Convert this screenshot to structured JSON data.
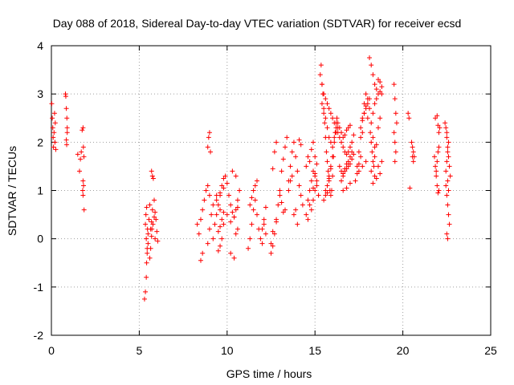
{
  "chart_data": {
    "type": "scatter",
    "title": "Day 088 of 2018, Sidereal Day-to-day VTEC variation (SDTVAR) for receiver ecsd",
    "xlabel": "GPS time / hours",
    "ylabel": "SDTVAR / TECUs",
    "xlim": [
      0,
      25
    ],
    "ylim": [
      -2,
      4
    ],
    "xticks": [
      0,
      5,
      10,
      15,
      20,
      25
    ],
    "yticks": [
      -2,
      -1,
      0,
      1,
      2,
      3,
      4
    ],
    "xtick_labels": [
      "0",
      "5",
      "10",
      "15",
      "20",
      "25"
    ],
    "ytick_labels": [
      "-2",
      "-1",
      "0",
      "1",
      "2",
      "3",
      "4"
    ],
    "grid": true,
    "marker": "+",
    "color": "#ff0000",
    "series": [
      {
        "name": "SDTVAR",
        "x": [
          0.02,
          0.05,
          0.08,
          0.1,
          0.12,
          0.15,
          0.18,
          0.2,
          0.22,
          0.25,
          0.8,
          0.82,
          0.85,
          0.88,
          0.9,
          0.85,
          0.87,
          0.9,
          1.5,
          1.6,
          1.65,
          1.7,
          1.75,
          1.8,
          1.82,
          1.85,
          1.78,
          1.8,
          1.83,
          1.86,
          1.8,
          5.3,
          5.35,
          5.4,
          5.42,
          5.45,
          5.5,
          5.55,
          5.6,
          5.35,
          5.4,
          5.45,
          5.5,
          5.38,
          5.42,
          5.47,
          5.7,
          5.75,
          5.8,
          5.85,
          5.9,
          5.95,
          6.0,
          6.05,
          5.72,
          5.78,
          5.85,
          5.9,
          5.6,
          5.65,
          5.7,
          5.65,
          5.7,
          5.75,
          8.3,
          8.4,
          8.5,
          8.6,
          8.7,
          8.8,
          8.9,
          9.0,
          9.1,
          8.9,
          8.95,
          9.0,
          9.05,
          8.5,
          8.6,
          8.9,
          9.0,
          9.2,
          9.3,
          9.4,
          9.5,
          9.6,
          9.7,
          9.8,
          9.9,
          10.0,
          10.1,
          10.2,
          10.3,
          10.4,
          10.5,
          10.6,
          10.7,
          9.5,
          9.6,
          9.7,
          9.8,
          9.5,
          9.6,
          9.7,
          10.2,
          10.4,
          10.5,
          10.6,
          9.2,
          9.4,
          9.6,
          9.8,
          10.0,
          10.2,
          10.4,
          10.6,
          9.4,
          9.6,
          9.8,
          10.3,
          10.5,
          11.2,
          11.3,
          11.4,
          11.5,
          11.6,
          11.7,
          11.8,
          11.9,
          12.0,
          12.1,
          12.2,
          11.5,
          11.6,
          11.7,
          11.3,
          11.4,
          12.0,
          12.1,
          12.2,
          12.5,
          12.6,
          12.7,
          12.8,
          12.9,
          13.0,
          13.1,
          13.2,
          13.3,
          13.4,
          12.6,
          12.7,
          12.8,
          13.0,
          13.1,
          13.2,
          13.3,
          12.5,
          12.6,
          12.8,
          13.5,
          13.6,
          13.7,
          13.8,
          13.9,
          14.0,
          14.1,
          14.2,
          14.3,
          13.8,
          13.9,
          14.0,
          13.5,
          13.6,
          13.7,
          14.1,
          14.2,
          14.5,
          14.6,
          14.7,
          14.8,
          14.9,
          15.0,
          15.1,
          15.2,
          14.5,
          14.6,
          14.7,
          14.8,
          14.9,
          15.0,
          15.1,
          15.2,
          14.6,
          14.7,
          14.9,
          15.0,
          15.1,
          14.8,
          14.9,
          15.0,
          15.3,
          15.35,
          15.4,
          15.45,
          15.5,
          15.55,
          15.6,
          15.65,
          15.7,
          15.75,
          15.8,
          15.85,
          15.9,
          15.95,
          16.0,
          16.05,
          16.1,
          16.15,
          16.2,
          16.25,
          15.4,
          15.5,
          15.6,
          15.7,
          15.8,
          15.9,
          16.0,
          16.1,
          16.2,
          16.3,
          15.5,
          15.6,
          15.7,
          15.8,
          15.9,
          16.0,
          15.4,
          15.5,
          15.6,
          15.7,
          15.8,
          15.9,
          16.0,
          16.1,
          16.2,
          15.6,
          15.7,
          15.8,
          15.9,
          16.3,
          16.4,
          16.5,
          16.6,
          16.7,
          16.8,
          16.9,
          17.0,
          17.1,
          17.2,
          16.4,
          16.5,
          16.6,
          16.7,
          16.8,
          16.9,
          17.0,
          17.1,
          16.3,
          16.4,
          16.5,
          16.6,
          16.7,
          16.8,
          16.9,
          17.0,
          16.5,
          16.6,
          16.7,
          16.8,
          16.9,
          17.0,
          17.1,
          17.2,
          16.6,
          16.8,
          17.0,
          17.3,
          17.4,
          17.5,
          17.6,
          17.7,
          17.8,
          17.9,
          18.0,
          18.1,
          17.4,
          17.5,
          17.6,
          17.7,
          17.8,
          17.9,
          18.0,
          17.6,
          17.7,
          17.8,
          17.9,
          18.0,
          18.1,
          17.5,
          17.7,
          17.9,
          18.1,
          18.2,
          18.3,
          18.4,
          18.5,
          18.6,
          18.7,
          18.8,
          18.15,
          18.2,
          18.25,
          18.3,
          18.35,
          18.4,
          18.2,
          18.3,
          18.4,
          18.5,
          18.6,
          18.7,
          18.8,
          18.3,
          18.4,
          18.5,
          18.6,
          18.7,
          18.2,
          18.4,
          18.6,
          18.8,
          18.3,
          18.5,
          18.7,
          19.5,
          19.55,
          19.6,
          19.65,
          19.5,
          19.55,
          19.6,
          19.55,
          20.3,
          20.35,
          20.4,
          20.5,
          20.55,
          20.6,
          20.65,
          20.6,
          20.55,
          21.8,
          21.85,
          21.9,
          21.95,
          22.0,
          22.05,
          21.9,
          21.95,
          22.0,
          22.05,
          21.85,
          21.95,
          22.1,
          22.05,
          22.0,
          22.4,
          22.45,
          22.5,
          22.55,
          22.6,
          22.65,
          22.7,
          22.45,
          22.5,
          22.55,
          22.6,
          22.65,
          22.5,
          22.55,
          22.6,
          22.45,
          22.5,
          22.55,
          22.6,
          22.5,
          22.55
        ],
        "y": [
          2.8,
          2.5,
          2.3,
          2.1,
          1.9,
          2.2,
          2.6,
          2.0,
          2.4,
          1.85,
          3.0,
          2.95,
          2.7,
          2.5,
          2.2,
          2.05,
          1.95,
          2.3,
          1.75,
          1.4,
          1.65,
          1.8,
          2.25,
          2.3,
          1.9,
          1.7,
          1.0,
          0.9,
          1.1,
          0.6,
          1.2,
          -1.25,
          -1.1,
          -0.8,
          -0.5,
          -0.2,
          0.1,
          0.4,
          0.7,
          0.3,
          0.0,
          -0.3,
          -0.1,
          0.5,
          0.65,
          0.2,
          1.4,
          1.3,
          1.25,
          0.8,
          0.55,
          0.4,
          0.15,
          -0.05,
          0.2,
          0.3,
          0.45,
          0.0,
          -0.4,
          -0.2,
          0.05,
          0.2,
          0.35,
          0.6,
          0.3,
          0.1,
          0.4,
          0.6,
          0.8,
          1.0,
          1.1,
          0.9,
          0.5,
          1.9,
          2.1,
          2.2,
          1.8,
          -0.45,
          -0.3,
          -0.1,
          0.2,
          0.0,
          0.3,
          0.5,
          0.7,
          0.9,
          1.1,
          1.25,
          1.3,
          1.15,
          0.9,
          0.7,
          0.55,
          0.45,
          0.6,
          0.8,
          1.0,
          0.15,
          0.25,
          0.4,
          0.55,
          -0.25,
          -0.15,
          0.0,
          -0.3,
          -0.4,
          0.1,
          0.2,
          0.7,
          0.8,
          0.6,
          0.3,
          0.5,
          0.35,
          0.45,
          0.65,
          0.9,
          0.95,
          1.05,
          1.4,
          1.3,
          -0.2,
          0.0,
          0.3,
          0.6,
          0.8,
          0.5,
          0.2,
          0.0,
          -0.1,
          0.4,
          0.65,
          1.0,
          1.1,
          1.2,
          0.7,
          0.85,
          0.2,
          0.3,
          0.1,
          -0.3,
          -0.15,
          0.1,
          0.4,
          0.7,
          1.0,
          1.4,
          1.65,
          1.9,
          2.1,
          1.45,
          1.8,
          2.0,
          0.9,
          0.75,
          0.55,
          0.6,
          -0.1,
          0.15,
          0.35,
          1.2,
          1.5,
          1.8,
          2.0,
          1.7,
          1.4,
          1.1,
          0.9,
          0.7,
          0.5,
          0.6,
          0.3,
          1.0,
          1.2,
          1.3,
          2.05,
          1.95,
          0.5,
          0.8,
          1.0,
          1.2,
          1.4,
          1.3,
          1.1,
          0.9,
          1.5,
          1.7,
          1.6,
          0.6,
          0.8,
          1.0,
          1.2,
          0.9,
          0.4,
          0.7,
          1.05,
          1.35,
          1.55,
          1.85,
          2.0,
          1.7,
          3.4,
          3.6,
          3.2,
          3.0,
          2.7,
          2.4,
          2.1,
          1.8,
          1.6,
          1.4,
          1.2,
          1.0,
          0.9,
          1.0,
          1.3,
          1.7,
          2.0,
          2.2,
          2.4,
          2.5,
          2.8,
          2.6,
          2.5,
          2.3,
          2.1,
          2.0,
          1.9,
          2.1,
          2.2,
          2.3,
          0.8,
          0.9,
          1.1,
          1.3,
          1.5,
          1.7,
          3.2,
          3.0,
          2.9,
          2.8,
          2.7,
          2.6,
          2.5,
          2.4,
          2.3,
          1.0,
          0.95,
          1.25,
          1.45,
          2.2,
          2.1,
          2.0,
          1.9,
          1.8,
          1.75,
          1.8,
          1.9,
          2.0,
          2.15,
          1.5,
          1.4,
          1.35,
          1.45,
          1.55,
          1.6,
          1.7,
          1.8,
          2.4,
          2.3,
          2.2,
          2.1,
          2.15,
          2.25,
          2.3,
          2.35,
          1.2,
          1.3,
          1.4,
          1.45,
          1.5,
          1.55,
          1.65,
          1.75,
          1.0,
          1.05,
          1.15,
          1.2,
          1.5,
          1.8,
          2.1,
          2.5,
          2.8,
          3.0,
          2.9,
          2.7,
          1.35,
          1.55,
          1.7,
          2.2,
          2.6,
          2.75,
          2.5,
          2.3,
          2.45,
          2.6,
          2.7,
          2.8,
          2.9,
          1.4,
          1.5,
          1.6,
          3.75,
          3.6,
          3.4,
          3.2,
          3.1,
          3.3,
          3.25,
          3.15,
          2.2,
          2.0,
          1.8,
          1.6,
          1.5,
          1.7,
          2.4,
          2.6,
          2.8,
          2.9,
          3.0,
          3.05,
          3.0,
          2.1,
          1.9,
          1.95,
          2.3,
          2.5,
          1.4,
          1.3,
          1.5,
          1.6,
          1.15,
          1.25,
          1.35,
          3.2,
          2.9,
          2.6,
          2.4,
          2.2,
          2.0,
          1.8,
          1.6,
          2.6,
          2.5,
          1.05,
          2.0,
          1.9,
          1.8,
          1.7,
          1.6,
          1.7,
          1.7,
          1.5,
          1.3,
          1.1,
          0.95,
          1.0,
          1.4,
          1.6,
          1.8,
          1.9,
          2.5,
          2.55,
          2.3,
          2.2,
          2.35,
          2.4,
          2.3,
          2.1,
          1.9,
          1.7,
          1.5,
          1.3,
          1.1,
          0.9,
          0.7,
          0.5,
          0.3,
          0.1,
          1.2,
          1.0,
          1.4,
          1.6,
          1.8,
          2.0,
          2.2,
          0.0
        ]
      }
    ]
  }
}
